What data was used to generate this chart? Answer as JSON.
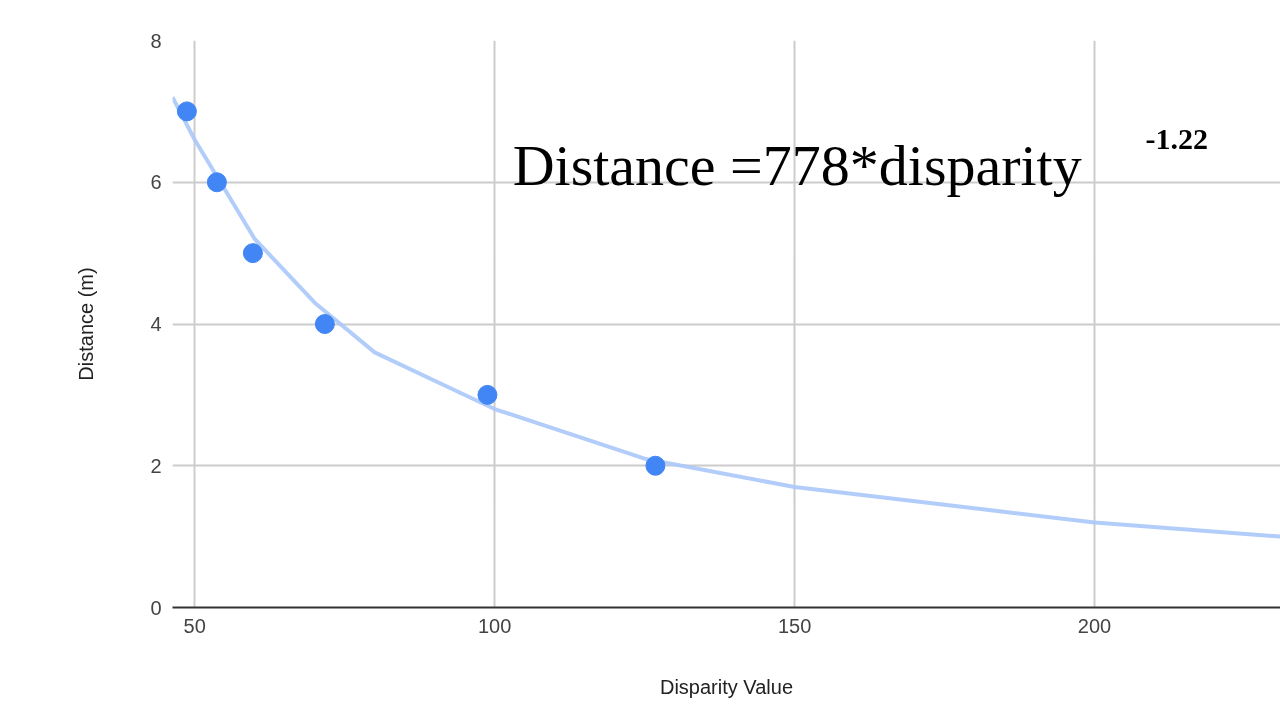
{
  "chart_data": {
    "type": "scatter",
    "xlabel": "Disparity Value",
    "ylabel": "Distance (m)",
    "xlim": [
      46.3,
      231
    ],
    "xticks": [
      50,
      100,
      150,
      200
    ],
    "ylim": [
      0,
      8
    ],
    "yticks": [
      0,
      2,
      4,
      6,
      8
    ],
    "grid": true,
    "annotations": [
      "Distance =778*disparity$^{-1.22}$"
    ],
    "series": [
      {
        "marker": "circle",
        "color": "#4285f4",
        "x": [
          48.7,
          53.7,
          59.7,
          71.7,
          98.8,
          126.8
        ],
        "values": [
          7,
          6,
          5,
          4,
          3,
          2
        ]
      },
      {
        "type": "line",
        "color": "#aac8f8",
        "x": [
          46.3,
          50,
          55,
          60,
          70,
          80,
          90,
          100,
          125,
          150,
          175,
          200,
          231
        ],
        "values": [
          7.2,
          6.6,
          5.9,
          5.2,
          4.3,
          3.6,
          3.2,
          2.8,
          2.1,
          1.7,
          1.45,
          1.2,
          1.0
        ]
      }
    ]
  }
}
